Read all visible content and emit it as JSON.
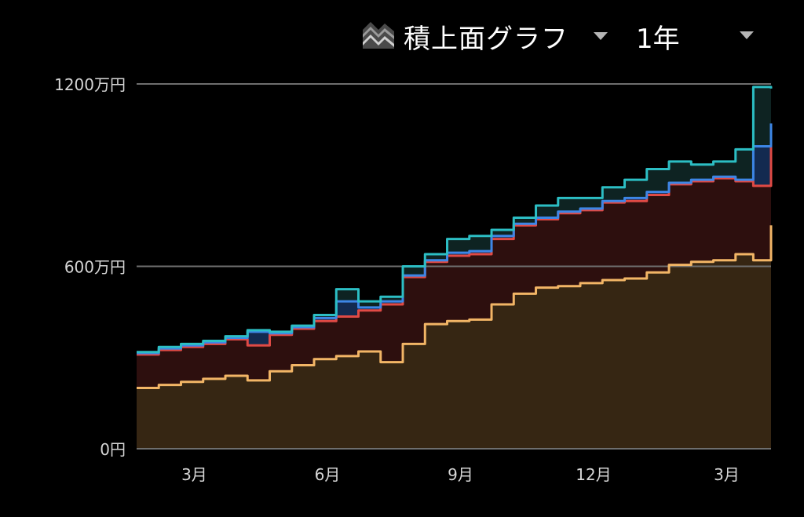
{
  "toolbar": {
    "chart_type_label": "積上面グラフ",
    "chart_type_icon": "stacked-area-icon",
    "period_label": "1年",
    "caret_icon": "chevron-down-icon"
  },
  "colors": {
    "background": "#000000",
    "gridline": "#6e6e6e",
    "series_1_line": "#f2b566",
    "series_1_fill": "#362613",
    "series_2_line": "#e04a45",
    "series_2_fill": "#2d0f0e",
    "series_3_line": "#3d86e6",
    "series_3_fill": "#132a50",
    "series_4_line": "#2cbec4",
    "series_4_fill": "#0e2322"
  },
  "chart_data": {
    "type": "area",
    "stacked": true,
    "y_tick_labels": [
      "0円",
      "600万円",
      "1200万円"
    ],
    "y_ticks": [
      0,
      600,
      1200
    ],
    "ylim": [
      0,
      1200
    ],
    "y_unit": "万円",
    "x_tick_labels": [
      "3月",
      "6月",
      "9月",
      "12月",
      "3月"
    ],
    "x_ticks": [
      1.3,
      4.3,
      7.3,
      10.3,
      13.3
    ],
    "xlim": [
      0,
      14.3
    ],
    "grid": true,
    "x": [
      0,
      0.5,
      1,
      1.5,
      2,
      2.5,
      3,
      3.5,
      4,
      4.5,
      5,
      5.5,
      6,
      6.5,
      7,
      7.5,
      8,
      8.5,
      9,
      9.5,
      10,
      10.5,
      11,
      11.5,
      12,
      12.5,
      13,
      13.5,
      13.9,
      14.3
    ],
    "series": [
      {
        "values": [
          200,
          210,
          220,
          230,
          240,
          225,
          255,
          275,
          295,
          305,
          320,
          285,
          345,
          410,
          420,
          425,
          475,
          510,
          530,
          535,
          545,
          555,
          560,
          580,
          605,
          615,
          620,
          640,
          620,
          735
        ]
      },
      {
        "values": [
          110,
          115,
          115,
          115,
          120,
          115,
          120,
          120,
          125,
          130,
          135,
          190,
          220,
          205,
          215,
          215,
          215,
          225,
          225,
          240,
          240,
          255,
          255,
          255,
          265,
          265,
          270,
          240,
          245,
          270
        ]
      },
      {
        "values": [
          5,
          5,
          5,
          5,
          5,
          45,
          5,
          5,
          10,
          50,
          10,
          10,
          5,
          5,
          10,
          10,
          10,
          5,
          5,
          5,
          5,
          5,
          10,
          10,
          5,
          5,
          5,
          5,
          130,
          65
        ]
      },
      {
        "values": [
          3,
          5,
          5,
          5,
          5,
          5,
          5,
          5,
          10,
          40,
          20,
          15,
          30,
          20,
          45,
          50,
          20,
          20,
          40,
          45,
          35,
          45,
          60,
          75,
          70,
          50,
          50,
          100,
          195,
          115
        ]
      }
    ]
  }
}
